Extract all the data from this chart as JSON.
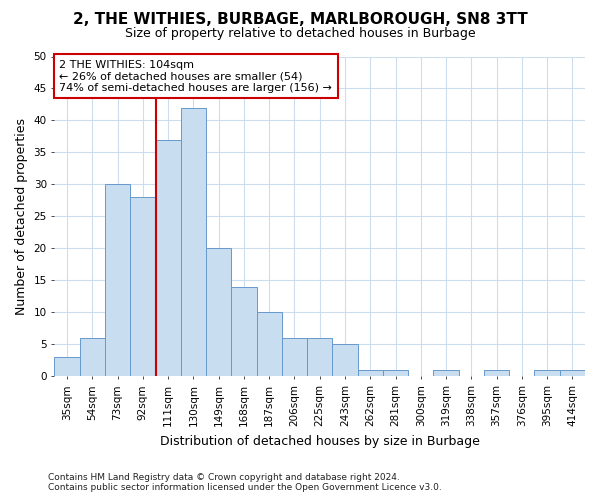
{
  "title_line1": "2, THE WITHIES, BURBAGE, MARLBOROUGH, SN8 3TT",
  "title_line2": "Size of property relative to detached houses in Burbage",
  "xlabel": "Distribution of detached houses by size in Burbage",
  "ylabel": "Number of detached properties",
  "categories": [
    "35sqm",
    "54sqm",
    "73sqm",
    "92sqm",
    "111sqm",
    "130sqm",
    "149sqm",
    "168sqm",
    "187sqm",
    "206sqm",
    "225sqm",
    "243sqm",
    "262sqm",
    "281sqm",
    "300sqm",
    "319sqm",
    "338sqm",
    "357sqm",
    "376sqm",
    "395sqm",
    "414sqm"
  ],
  "values": [
    3,
    6,
    30,
    28,
    37,
    42,
    20,
    14,
    10,
    6,
    6,
    5,
    1,
    1,
    0,
    1,
    0,
    1,
    0,
    1,
    1
  ],
  "bar_color": "#c9ddf0",
  "bar_edge_color": "#6699cc",
  "red_line_index": 4,
  "annotation_line1": "2 THE WITHIES: 104sqm",
  "annotation_line2": "← 26% of detached houses are smaller (54)",
  "annotation_line3": "74% of semi-detached houses are larger (156) →",
  "ylim": [
    0,
    50
  ],
  "yticks": [
    0,
    5,
    10,
    15,
    20,
    25,
    30,
    35,
    40,
    45,
    50
  ],
  "footnote1": "Contains HM Land Registry data © Crown copyright and database right 2024.",
  "footnote2": "Contains public sector information licensed under the Open Government Licence v3.0.",
  "bg_color": "#ffffff",
  "plot_bg_color": "#ffffff",
  "grid_color": "#ccddee",
  "red_line_color": "#cc0000",
  "annotation_box_facecolor": "#ffffff",
  "annotation_border_color": "#cc0000",
  "title1_fontsize": 11,
  "title2_fontsize": 9,
  "ylabel_fontsize": 9,
  "xlabel_fontsize": 9,
  "tick_fontsize": 7.5,
  "annotation_fontsize": 8,
  "footnote_fontsize": 6.5
}
